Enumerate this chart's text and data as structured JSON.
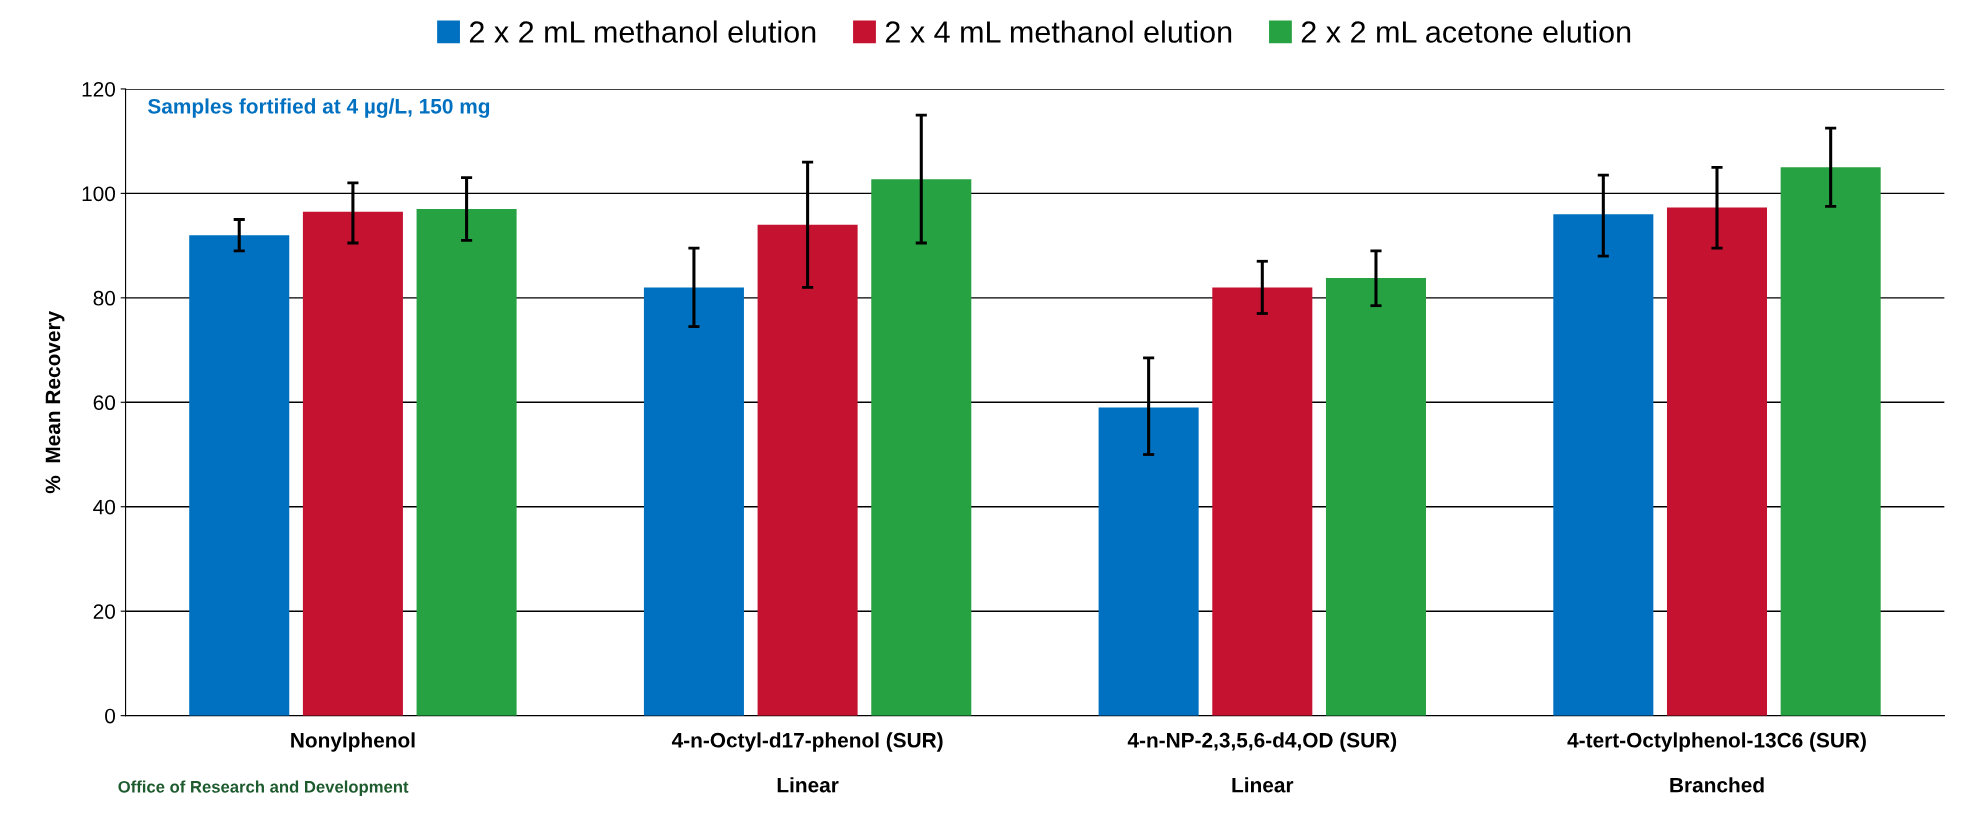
{
  "chart_data": {
    "type": "bar",
    "ylabel": "%  Mean Recovery",
    "categories": [
      "Nonylphenol",
      "4-n-Octyl-d17-phenol (SUR)\n\nLinear",
      "4-n-NP-2,3,5,6-d4,OD (SUR)\n\nLinear",
      "4-tert-Octylphenol-13C6 (SUR)\n\nBranched"
    ],
    "series": [
      {
        "name": "2 x 2 mL methanol elution",
        "color": "#0070c0",
        "values": [
          92,
          82,
          59,
          96
        ],
        "errors": [
          [
            89,
            95
          ],
          [
            74.5,
            89.5
          ],
          [
            50,
            68.5
          ],
          [
            88,
            103.5
          ]
        ]
      },
      {
        "name": "2 x 4 mL methanol elution",
        "color": "#c41230",
        "values": [
          96.5,
          94,
          82,
          97.3
        ],
        "errors": [
          [
            90.5,
            102
          ],
          [
            82,
            106
          ],
          [
            77,
            87
          ],
          [
            89.5,
            105
          ]
        ]
      },
      {
        "name": "2 x 2 mL acetone elution",
        "color": "#27a243",
        "values": [
          97,
          102.7,
          83.8,
          105
        ],
        "errors": [
          [
            91,
            103
          ],
          [
            90.5,
            115
          ],
          [
            78.5,
            89
          ],
          [
            97.5,
            112.5
          ]
        ]
      }
    ],
    "ylim": [
      0,
      120
    ],
    "yticks": [
      0,
      20,
      40,
      60,
      80,
      100,
      120
    ],
    "grid": "y",
    "legend": "top",
    "annotations": [
      {
        "text": "Samples fortified at 4 µg/L, 150 mg"
      },
      {
        "text": "Office of Research and Development"
      }
    ]
  }
}
